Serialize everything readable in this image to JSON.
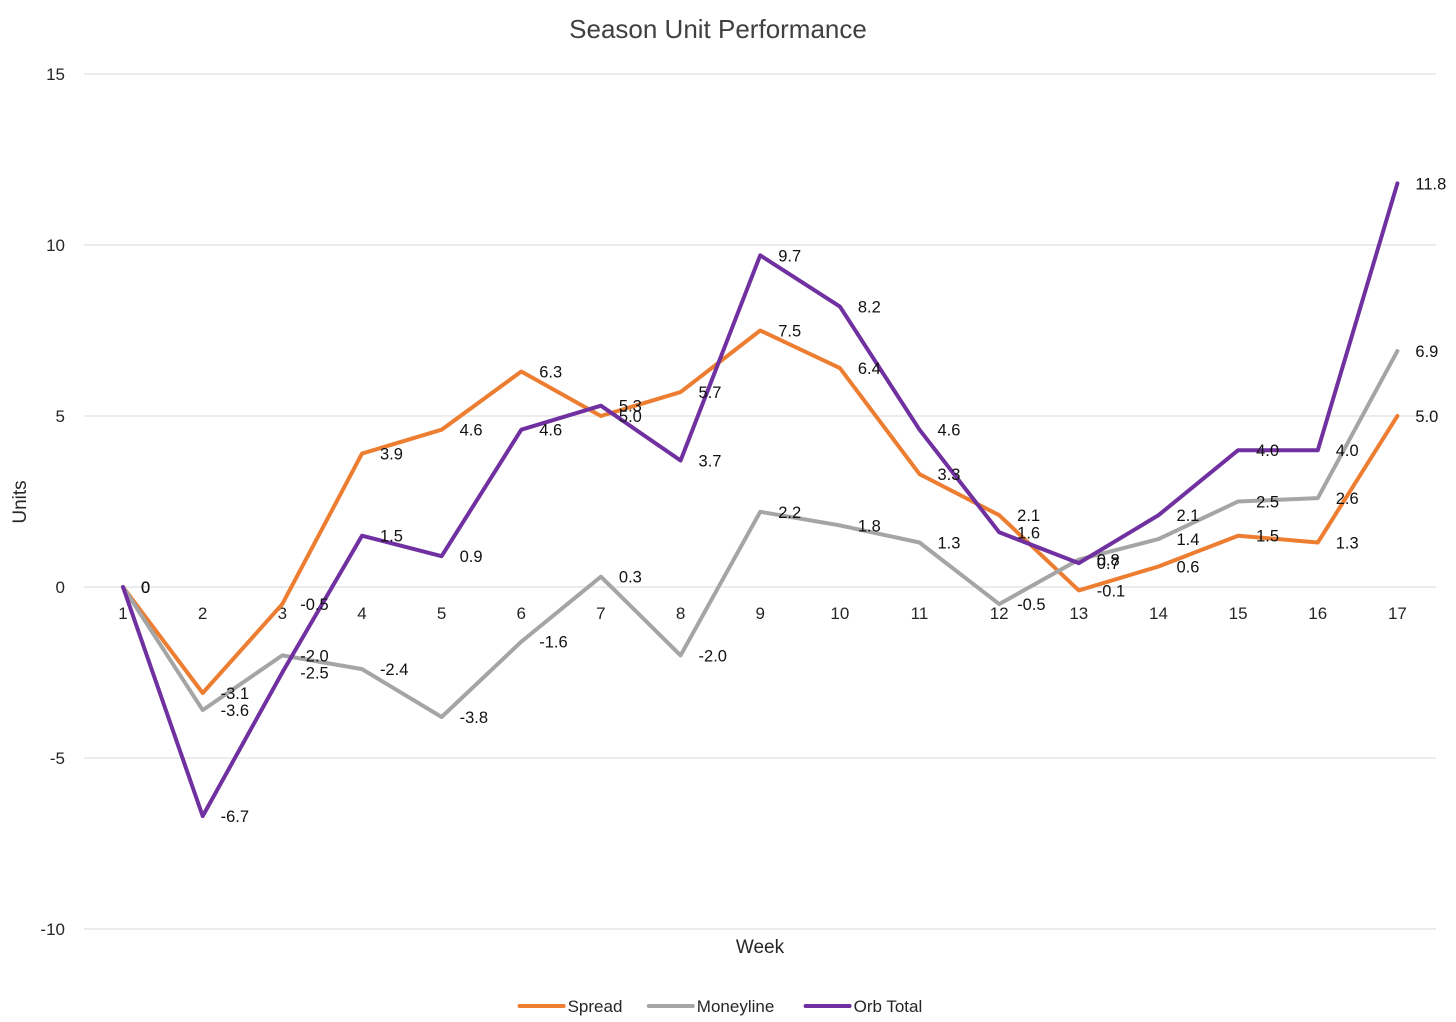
{
  "chart_data": {
    "type": "line",
    "title": "Season Unit Performance",
    "xlabel": "Week",
    "ylabel": "Units",
    "ylim": [
      -10,
      15
    ],
    "yticks": [
      -10,
      -5,
      0,
      5,
      10,
      15
    ],
    "grid": true,
    "legend_position": "bottom",
    "categories": [
      "1",
      "2",
      "3",
      "4",
      "5",
      "6",
      "7",
      "8",
      "9",
      "10",
      "11",
      "12",
      "13",
      "14",
      "15",
      "16",
      "17"
    ],
    "series": [
      {
        "name": "Spread",
        "color": "#ed7d31",
        "values": [
          0,
          -3.1,
          -0.5,
          3.9,
          4.6,
          6.3,
          5.0,
          5.7,
          7.5,
          6.4,
          3.3,
          2.1,
          -0.1,
          0.6,
          1.5,
          1.3,
          5.0
        ],
        "labels": [
          "0",
          "-3.1",
          "-0.5",
          "3.9",
          "4.6",
          "6.3",
          "5.0",
          "5.7",
          "7.5",
          "6.4",
          "3.3",
          "2.1",
          "-0.1",
          "0.6",
          "1.5",
          "1.3",
          "5.0"
        ]
      },
      {
        "name": "Moneyline",
        "color": "#a5a5a5",
        "values": [
          0,
          -3.6,
          -2.0,
          -2.4,
          -3.8,
          -1.6,
          0.3,
          -2.0,
          2.2,
          1.8,
          1.3,
          -0.5,
          0.8,
          1.4,
          2.5,
          2.6,
          6.9
        ],
        "labels": [
          "0",
          "-3.6",
          "-2.0",
          "-2.4",
          "-3.8",
          "-1.6",
          "0.3",
          "-2.0",
          "2.2",
          "1.8",
          "1.3",
          "-0.5",
          "0.8",
          "1.4",
          "2.5",
          "2.6",
          "6.9"
        ]
      },
      {
        "name": "Orb Total",
        "color": "#7030a0",
        "values": [
          0,
          -6.7,
          -2.5,
          1.5,
          0.9,
          4.6,
          5.3,
          3.7,
          9.7,
          8.2,
          4.6,
          1.6,
          0.7,
          2.1,
          4.0,
          4.0,
          11.8
        ],
        "labels": [
          "0",
          "-6.7",
          "-2.5",
          "1.5",
          "0.9",
          "4.6",
          "5.3",
          "3.7",
          "9.7",
          "8.2",
          "4.6",
          "1.6",
          "0.7",
          "2.1",
          "4.0",
          "4.0",
          "11.8"
        ]
      }
    ]
  }
}
